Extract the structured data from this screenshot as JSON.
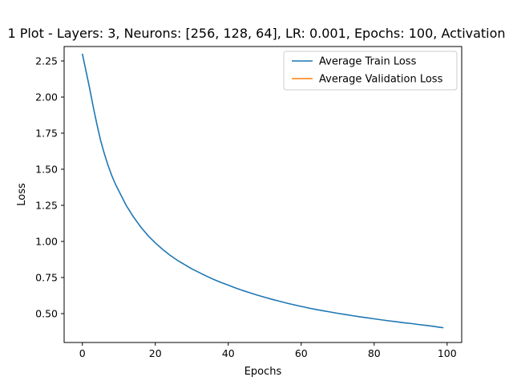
{
  "chart_data": {
    "type": "line",
    "title": "1 Plot - Layers: 3, Neurons: [256, 128, 64], LR: 0.001, Epochs: 100, Activation",
    "xlabel": "Epochs",
    "ylabel": "Loss",
    "xlim": [
      -5,
      104
    ],
    "ylim": [
      0.3,
      2.35
    ],
    "xticks": [
      0,
      20,
      40,
      60,
      80,
      100
    ],
    "xtick_labels": [
      "0",
      "20",
      "40",
      "60",
      "80",
      "100"
    ],
    "yticks": [
      0.5,
      0.75,
      1.0,
      1.25,
      1.5,
      1.75,
      2.0,
      2.25
    ],
    "ytick_labels": [
      "0.50",
      "0.75",
      "1.00",
      "1.25",
      "1.50",
      "1.75",
      "2.00",
      "2.25"
    ],
    "grid": false,
    "legend_position": "top-right",
    "series": [
      {
        "name": "Average Train Loss",
        "color": "#1f77b4",
        "x": [
          0,
          1,
          2,
          3,
          4,
          5,
          6,
          7,
          8,
          9,
          10,
          11,
          12,
          13,
          14,
          15,
          16,
          17,
          18,
          19,
          20,
          22,
          24,
          26,
          28,
          30,
          32,
          34,
          36,
          38,
          40,
          42,
          44,
          46,
          48,
          50,
          52,
          54,
          56,
          58,
          60,
          62,
          64,
          66,
          68,
          70,
          72,
          74,
          76,
          78,
          80,
          82,
          84,
          86,
          88,
          90,
          92,
          94,
          96,
          98,
          99
        ],
        "values": [
          2.3,
          2.18,
          2.06,
          1.93,
          1.81,
          1.7,
          1.61,
          1.53,
          1.46,
          1.4,
          1.35,
          1.3,
          1.25,
          1.21,
          1.17,
          1.135,
          1.1,
          1.07,
          1.04,
          1.015,
          0.99,
          0.945,
          0.905,
          0.87,
          0.84,
          0.81,
          0.785,
          0.76,
          0.737,
          0.716,
          0.697,
          0.678,
          0.66,
          0.644,
          0.628,
          0.613,
          0.599,
          0.586,
          0.573,
          0.561,
          0.55,
          0.539,
          0.529,
          0.52,
          0.511,
          0.502,
          0.494,
          0.486,
          0.478,
          0.471,
          0.464,
          0.457,
          0.45,
          0.444,
          0.437,
          0.432,
          0.425,
          0.419,
          0.413,
          0.405,
          0.402
        ]
      },
      {
        "name": "Average Validation Loss",
        "color": "#ff7f0e",
        "x": [],
        "values": []
      }
    ]
  }
}
